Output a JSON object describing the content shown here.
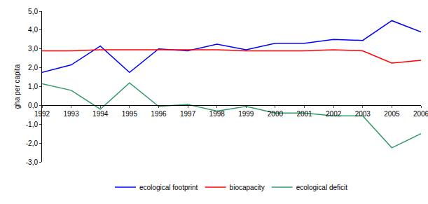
{
  "chart_data": {
    "type": "line",
    "y_label": "gha per capita",
    "categories": [
      "1992",
      "1993",
      "1994",
      "1995",
      "1996",
      "1997",
      "1998",
      "1999",
      "2000",
      "2001",
      "2002",
      "2003",
      "2005",
      "2006"
    ],
    "series": [
      {
        "name": "ecological footprint",
        "color": "#0000ff",
        "line_style": "solid",
        "values": [
          1.75,
          2.15,
          3.15,
          1.75,
          3.0,
          2.9,
          3.25,
          2.95,
          3.3,
          3.3,
          3.5,
          3.45,
          4.5,
          3.9
        ]
      },
      {
        "name": "biocapacity",
        "color": "#ff0000",
        "line_style": "solid",
        "values": [
          2.9,
          2.9,
          2.95,
          2.95,
          2.95,
          2.95,
          2.95,
          2.9,
          2.9,
          2.9,
          2.95,
          2.9,
          2.25,
          2.4
        ]
      },
      {
        "name": "ecological deficit",
        "color": "#339966",
        "line_style": "solid",
        "values": [
          1.15,
          0.8,
          -0.2,
          1.2,
          -0.05,
          0.05,
          -0.3,
          -0.05,
          -0.4,
          -0.4,
          -0.55,
          -0.55,
          -2.25,
          -1.5
        ]
      }
    ],
    "ylim": [
      -3,
      5
    ],
    "yticks": [
      {
        "value": -3,
        "label": "-3,0"
      },
      {
        "value": -2,
        "label": "-2,0"
      },
      {
        "value": -1,
        "label": "-1,0"
      },
      {
        "value": 0,
        "label": "0,0"
      },
      {
        "value": 1,
        "label": "1,0"
      },
      {
        "value": 2,
        "label": "2,0"
      },
      {
        "value": 3,
        "label": "3,0"
      },
      {
        "value": 4,
        "label": "4,0"
      },
      {
        "value": 5,
        "label": "5,0"
      }
    ],
    "grid": false,
    "legend": "bottom"
  }
}
